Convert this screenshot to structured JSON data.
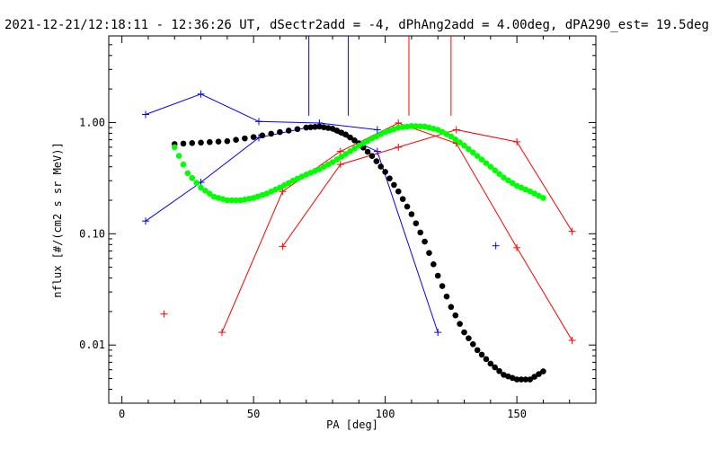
{
  "chart_data": {
    "type": "scatter",
    "title": "2021-12-21/12:18:11 - 12:36:26 UT, dSectr2add = -4, dPhAng2add = 4.00deg, dPA290_est=  19.5deg",
    "xlabel": "PA [deg]",
    "ylabel": "nflux [#/(cm2 s sr MeV)]",
    "xlim": [
      -5,
      180
    ],
    "ylim": [
      0.003,
      6
    ],
    "yscale": "log",
    "xticks": [
      0,
      50,
      100,
      150
    ],
    "xtick_labels": [
      "0",
      "50",
      "100",
      "150"
    ],
    "yticks": [
      0.01,
      0.1,
      1.0
    ],
    "ytick_labels": [
      "0.01",
      "0.10",
      "1.00"
    ],
    "grid": false,
    "colors": {
      "blue": "#0000ff",
      "red": "#ff0000",
      "black": "#000000",
      "green": "#00ff00"
    },
    "series": [
      {
        "color": "blue",
        "style": "line+plus",
        "points": [
          [
            9,
            1.18
          ],
          [
            30,
            1.8
          ],
          [
            52,
            1.02
          ],
          [
            75,
            0.99
          ],
          [
            97,
            0.86
          ]
        ]
      },
      {
        "color": "blue",
        "style": "line+plus",
        "points": [
          [
            9,
            0.13
          ],
          [
            30,
            0.29
          ],
          [
            52,
            0.73
          ],
          [
            75,
            0.95
          ],
          [
            97,
            0.55
          ],
          [
            120,
            0.013
          ]
        ]
      },
      {
        "color": "blue",
        "style": "plus",
        "points": [
          [
            142,
            0.078
          ]
        ]
      },
      {
        "color": "red",
        "style": "line+plus",
        "points": [
          [
            61,
            0.077
          ],
          [
            83,
            0.42
          ],
          [
            105,
            0.6
          ],
          [
            127,
            0.86
          ],
          [
            150,
            0.67
          ],
          [
            171,
            0.105
          ]
        ]
      },
      {
        "color": "red",
        "style": "line+plus",
        "points": [
          [
            38,
            0.013
          ],
          [
            61,
            0.24
          ],
          [
            83,
            0.55
          ],
          [
            105,
            0.99
          ],
          [
            127,
            0.65
          ],
          [
            150,
            0.075
          ],
          [
            171,
            0.011
          ]
        ]
      },
      {
        "color": "red",
        "style": "plus",
        "points": [
          [
            16,
            0.019
          ]
        ]
      },
      {
        "color": "black",
        "style": "dots",
        "points": [
          [
            20,
            0.64
          ],
          [
            30,
            0.66
          ],
          [
            40,
            0.68
          ],
          [
            50,
            0.74
          ],
          [
            60,
            0.82
          ],
          [
            70,
            0.9
          ],
          [
            75,
            0.92
          ],
          [
            80,
            0.88
          ],
          [
            85,
            0.78
          ],
          [
            90,
            0.65
          ],
          [
            95,
            0.5
          ],
          [
            100,
            0.36
          ],
          [
            105,
            0.24
          ],
          [
            110,
            0.15
          ],
          [
            115,
            0.085
          ],
          [
            120,
            0.042
          ],
          [
            125,
            0.022
          ],
          [
            130,
            0.013
          ],
          [
            135,
            0.009
          ],
          [
            140,
            0.0068
          ],
          [
            145,
            0.0054
          ],
          [
            150,
            0.0049
          ],
          [
            155,
            0.0049
          ],
          [
            160,
            0.0058
          ]
        ]
      },
      {
        "color": "green",
        "style": "dots",
        "points": [
          [
            20,
            0.6
          ],
          [
            25,
            0.35
          ],
          [
            30,
            0.26
          ],
          [
            35,
            0.215
          ],
          [
            40,
            0.2
          ],
          [
            45,
            0.2
          ],
          [
            50,
            0.21
          ],
          [
            55,
            0.23
          ],
          [
            60,
            0.26
          ],
          [
            65,
            0.3
          ],
          [
            70,
            0.34
          ],
          [
            75,
            0.38
          ],
          [
            80,
            0.44
          ],
          [
            85,
            0.52
          ],
          [
            90,
            0.62
          ],
          [
            95,
            0.72
          ],
          [
            100,
            0.82
          ],
          [
            105,
            0.9
          ],
          [
            110,
            0.93
          ],
          [
            115,
            0.92
          ],
          [
            120,
            0.86
          ],
          [
            125,
            0.75
          ],
          [
            130,
            0.62
          ],
          [
            135,
            0.5
          ],
          [
            140,
            0.4
          ],
          [
            145,
            0.32
          ],
          [
            150,
            0.27
          ],
          [
            155,
            0.24
          ],
          [
            160,
            0.21
          ]
        ]
      }
    ],
    "vlines": [
      {
        "color": "blue",
        "x": 71,
        "y_top": 6,
        "y_bottom": 1.15
      },
      {
        "color": "blue",
        "x": 86,
        "y_top": 6,
        "y_bottom": 1.15
      },
      {
        "color": "red",
        "x": 109,
        "y_top": 6,
        "y_bottom": 1.15
      },
      {
        "color": "red",
        "x": 125,
        "y_top": 6,
        "y_bottom": 1.15
      }
    ]
  }
}
